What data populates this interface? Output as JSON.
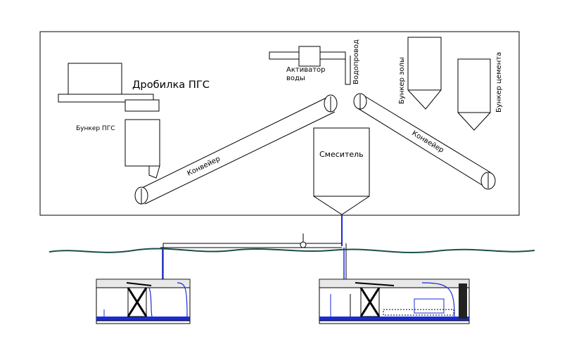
{
  "labels": {
    "crusher": "Дробилка ПГС",
    "pgs_bunker": "Бункер ПГС",
    "water_activator_line1": "Активатор",
    "water_activator_line2": "воды",
    "water_pipe": "Водопровод",
    "ash_bunker": "Бункер золы",
    "cement_bunker": "Бункер цемента",
    "conveyor_left": "Конвейер",
    "conveyor_right": "Конвейер",
    "mixer": "Смеситель"
  },
  "colors": {
    "pipe": "#1b2bd6",
    "ground": "#1a4f49",
    "water": "#1b2bd6",
    "line": "#000000"
  }
}
